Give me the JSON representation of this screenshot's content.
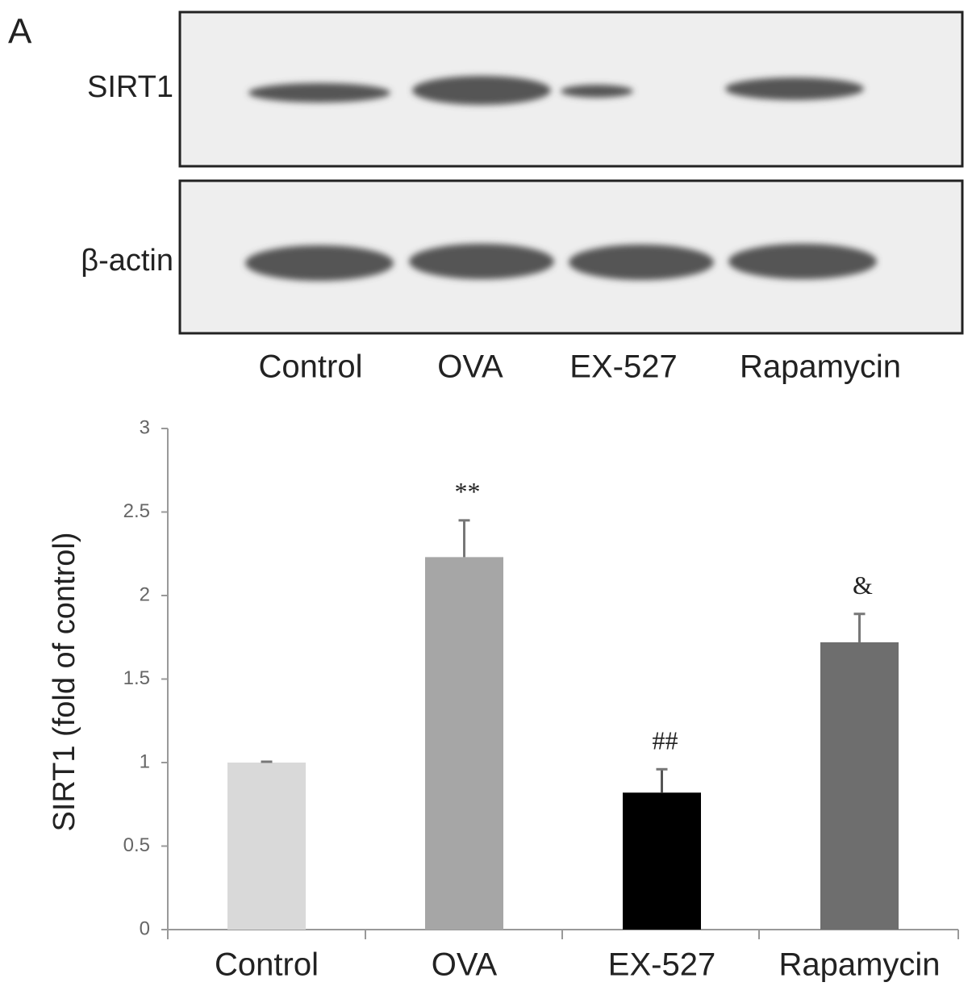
{
  "panel_label": "A",
  "blot": {
    "rows": [
      "SIRT1",
      "β-actin"
    ],
    "lanes": [
      "Control",
      "OVA",
      "EX-527",
      "Rapamycin"
    ]
  },
  "chart_data": {
    "type": "bar",
    "y_label": "SIRT1 (fold of control)",
    "categories": [
      "Control",
      "OVA",
      "EX-527",
      "Rapamycin"
    ],
    "values": [
      1.0,
      2.23,
      0.82,
      1.72
    ],
    "errors": [
      0.005,
      0.22,
      0.14,
      0.17
    ],
    "annotations": [
      null,
      "**",
      "##",
      "&"
    ],
    "colors": [
      "#d9d9d9",
      "#a6a6a6",
      "#000000",
      "#6e6e6e"
    ],
    "ylim": [
      0,
      3
    ],
    "yticks": [
      0,
      0.5,
      1,
      1.5,
      2,
      2.5,
      3
    ],
    "grid": false
  }
}
